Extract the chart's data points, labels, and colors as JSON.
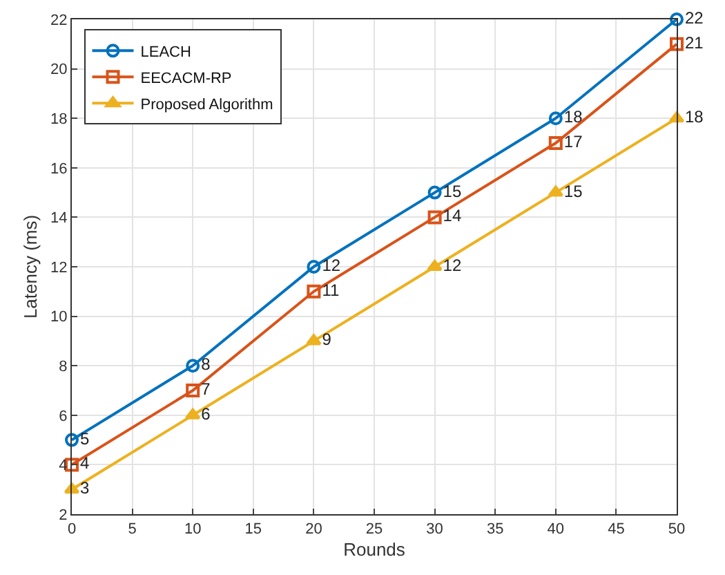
{
  "chart_data": {
    "type": "line",
    "xlabel": "Rounds",
    "ylabel": "Latency (ms)",
    "x": [
      0,
      10,
      20,
      30,
      40,
      50
    ],
    "series": [
      {
        "name": "LEACH",
        "color": "#0072bd",
        "marker": "circle",
        "values": [
          5,
          8,
          12,
          15,
          18,
          22
        ]
      },
      {
        "name": "EECACM-RP",
        "color": "#d95319",
        "marker": "square",
        "values": [
          4,
          7,
          11,
          14,
          17,
          21
        ]
      },
      {
        "name": "Proposed Algorithm",
        "color": "#edb120",
        "marker": "triangle",
        "values": [
          3,
          6,
          9,
          12,
          15,
          18
        ]
      }
    ],
    "xlim": [
      0,
      50
    ],
    "xticks": [
      0,
      5,
      10,
      15,
      20,
      25,
      30,
      35,
      40,
      45,
      50
    ],
    "ylim": [
      2,
      22
    ],
    "yticks": [
      2,
      4,
      6,
      8,
      10,
      12,
      14,
      16,
      18,
      20,
      22
    ],
    "grid": true,
    "legend": "top left",
    "data_labels": true,
    "line_style": "solid"
  }
}
